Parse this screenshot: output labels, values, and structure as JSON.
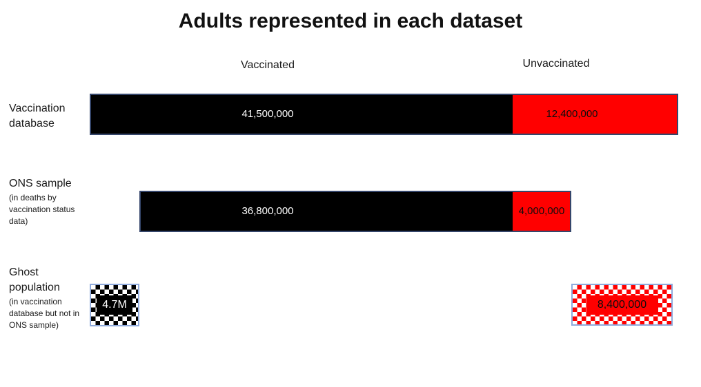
{
  "title": "Adults represented in each dataset",
  "columns": {
    "vaccinated": "Vaccinated",
    "unvaccinated": "Unvaccinated"
  },
  "rows": [
    {
      "label": "Vaccination database",
      "sublabel": "",
      "vaccinated_label": "41,500,000",
      "unvaccinated_label": "12,400,000"
    },
    {
      "label": "ONS sample",
      "sublabel": "(in deaths by vaccination status data)",
      "vaccinated_label": "36,800,000",
      "unvaccinated_label": "4,000,000"
    },
    {
      "label": "Ghost population",
      "sublabel": "(in vaccination database but not in ONS sample)",
      "vaccinated_label": "4.7M",
      "unvaccinated_label": "8,400,000"
    }
  ],
  "colors": {
    "vaccinated_fill": "#000000",
    "unvaccinated_fill": "#FF0000",
    "bar_border": "#35466B",
    "ghost_border": "#8FAADC",
    "background": "#FFFFFF"
  },
  "chart_data": {
    "type": "bar",
    "orientation": "horizontal-stacked",
    "title": "Adults represented in each dataset",
    "categories": [
      "Vaccination database",
      "ONS sample (in deaths by vaccination status data)",
      "Ghost population (in vaccination database but not in ONS sample)"
    ],
    "series": [
      {
        "name": "Vaccinated",
        "color": "#000000",
        "values": [
          41500000,
          36800000,
          4700000
        ]
      },
      {
        "name": "Unvaccinated",
        "color": "#FF0000",
        "values": [
          12400000,
          4000000,
          8400000
        ]
      }
    ],
    "value_labels": [
      [
        "41,500,000",
        "12,400,000"
      ],
      [
        "36,800,000",
        "4,000,000"
      ],
      [
        "4.7M",
        "8,400,000"
      ]
    ],
    "legend_position": "top-as-column-headers",
    "grid": false,
    "axes": false,
    "notes": "Ghost population segments are drawn as detached boxes with a checkerboard pattern fill; black = vaccinated, red = unvaccinated."
  }
}
